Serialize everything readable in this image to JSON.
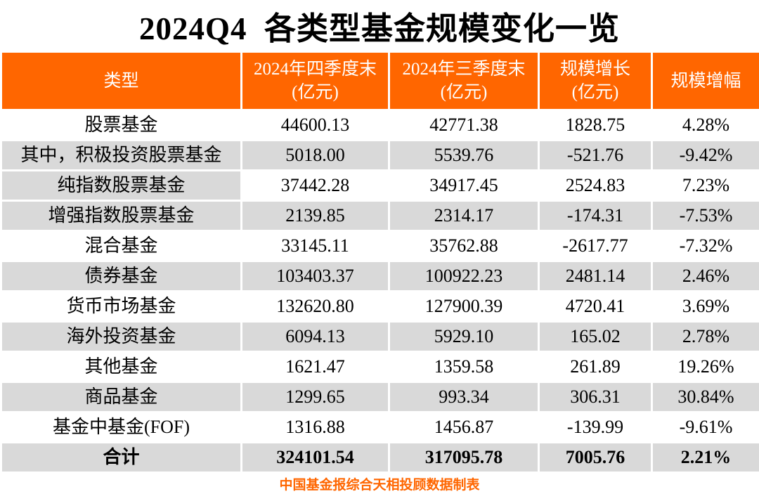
{
  "title": "2024Q4  各类型基金规模变化一览",
  "header": {
    "col_type": {
      "line1": "类型",
      "line2": ""
    },
    "col_q4": {
      "line1": "2024年四季度末",
      "line2": "(亿元)"
    },
    "col_q3": {
      "line1": "2024年三季度末",
      "line2": "(亿元)"
    },
    "col_growth": {
      "line1": "规模增长",
      "line2": "(亿元)"
    },
    "col_pct": {
      "line1": "规模增幅",
      "line2": ""
    }
  },
  "table": {
    "rows": [
      {
        "type": "股票基金",
        "q4_end": "44600.13",
        "q3_end": "42771.38",
        "growth": "1828.75",
        "growth_pct": "4.28%",
        "label_bg": "white",
        "value_bg": "white",
        "bold": false
      },
      {
        "type": "其中，积极投资股票基金",
        "q4_end": "5018.00",
        "q3_end": "5539.76",
        "growth": "-521.76",
        "growth_pct": "-9.42%",
        "label_bg": "gray",
        "value_bg": "gray",
        "bold": false
      },
      {
        "type": "纯指数股票基金",
        "q4_end": "37442.28",
        "q3_end": "34917.45",
        "growth": "2524.83",
        "growth_pct": "7.23%",
        "label_bg": "gray",
        "value_bg": "white",
        "bold": false
      },
      {
        "type": "增强指数股票基金",
        "q4_end": "2139.85",
        "q3_end": "2314.17",
        "growth": "-174.31",
        "growth_pct": "-7.53%",
        "label_bg": "gray",
        "value_bg": "gray",
        "bold": false
      },
      {
        "type": "混合基金",
        "q4_end": "33145.11",
        "q3_end": "35762.88",
        "growth": "-2617.77",
        "growth_pct": "-7.32%",
        "label_bg": "white",
        "value_bg": "white",
        "bold": false
      },
      {
        "type": "债券基金",
        "q4_end": "103403.37",
        "q3_end": "100922.23",
        "growth": "2481.14",
        "growth_pct": "2.46%",
        "label_bg": "gray",
        "value_bg": "gray",
        "bold": false
      },
      {
        "type": "货币市场基金",
        "q4_end": "132620.80",
        "q3_end": "127900.39",
        "growth": "4720.41",
        "growth_pct": "3.69%",
        "label_bg": "white",
        "value_bg": "white",
        "bold": false
      },
      {
        "type": "海外投资基金",
        "q4_end": "6094.13",
        "q3_end": "5929.10",
        "growth": "165.02",
        "growth_pct": "2.78%",
        "label_bg": "gray",
        "value_bg": "gray",
        "bold": false
      },
      {
        "type": "其他基金",
        "q4_end": "1621.47",
        "q3_end": "1359.58",
        "growth": "261.89",
        "growth_pct": "19.26%",
        "label_bg": "white",
        "value_bg": "white",
        "bold": false
      },
      {
        "type": "商品基金",
        "q4_end": "1299.65",
        "q3_end": "993.34",
        "growth": "306.31",
        "growth_pct": "30.84%",
        "label_bg": "gray",
        "value_bg": "gray",
        "bold": false
      },
      {
        "type": "基金中基金(FOF)",
        "q4_end": "1316.88",
        "q3_end": "1456.87",
        "growth": "-139.99",
        "growth_pct": "-9.61%",
        "label_bg": "white",
        "value_bg": "white",
        "bold": false
      },
      {
        "type": "合计",
        "q4_end": "324101.54",
        "q3_end": "317095.78",
        "growth": "7005.76",
        "growth_pct": "2.21%",
        "label_bg": "gray",
        "value_bg": "gray",
        "bold": true
      }
    ]
  },
  "footer": "中国基金报综合天相投顾数据制表",
  "colors": {
    "accent": "#FF6600",
    "row_gray": "#D9D9D9",
    "header_text": "#FFFFFF",
    "body_text": "#000000"
  },
  "chart_data": {
    "type": "table",
    "title": "2024Q4 各类型基金规模变化一览",
    "columns": [
      "类型",
      "2024年四季度末(亿元)",
      "2024年三季度末(亿元)",
      "规模增长(亿元)",
      "规模增幅"
    ],
    "rows": [
      [
        "股票基金",
        44600.13,
        42771.38,
        1828.75,
        "4.28%"
      ],
      [
        "其中，积极投资股票基金",
        5018.0,
        5539.76,
        -521.76,
        "-9.42%"
      ],
      [
        "纯指数股票基金",
        37442.28,
        34917.45,
        2524.83,
        "7.23%"
      ],
      [
        "增强指数股票基金",
        2139.85,
        2314.17,
        -174.31,
        "-7.53%"
      ],
      [
        "混合基金",
        33145.11,
        35762.88,
        -2617.77,
        "-7.32%"
      ],
      [
        "债券基金",
        103403.37,
        100922.23,
        2481.14,
        "2.46%"
      ],
      [
        "货币市场基金",
        132620.8,
        127900.39,
        4720.41,
        "3.69%"
      ],
      [
        "海外投资基金",
        6094.13,
        5929.1,
        165.02,
        "2.78%"
      ],
      [
        "其他基金",
        1621.47,
        1359.58,
        261.89,
        "19.26%"
      ],
      [
        "商品基金",
        1299.65,
        993.34,
        306.31,
        "30.84%"
      ],
      [
        "基金中基金(FOF)",
        1316.88,
        1456.87,
        -139.99,
        "-9.61%"
      ],
      [
        "合计",
        324101.54,
        317095.78,
        7005.76,
        "2.21%"
      ]
    ],
    "footnote": "中国基金报综合天相投顾数据制表"
  }
}
